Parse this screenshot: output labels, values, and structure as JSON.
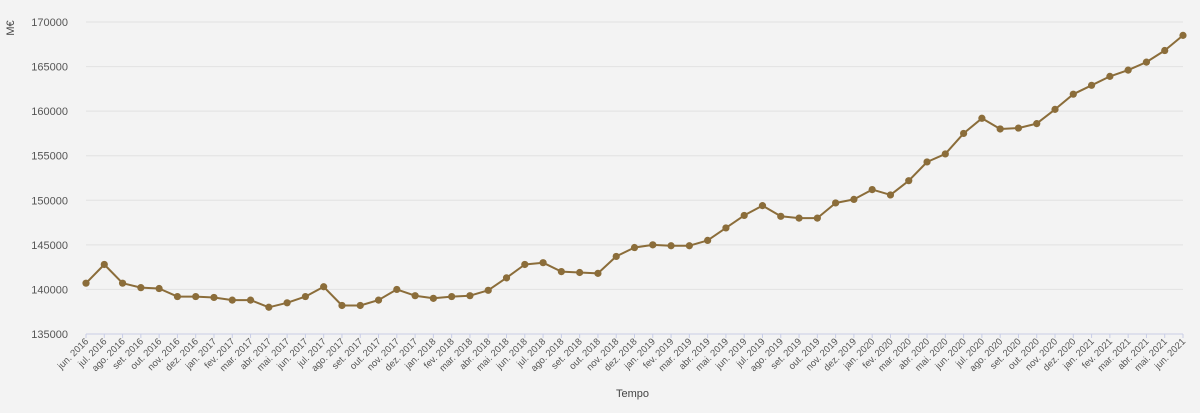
{
  "chart_data": {
    "type": "line",
    "xlabel": "Tempo",
    "ylabel": "M€",
    "ylim": [
      135000,
      170000
    ],
    "yticks": [
      135000,
      140000,
      145000,
      150000,
      155000,
      160000,
      165000,
      170000
    ],
    "grid": true,
    "line_color": "#8b6d3a",
    "categories": [
      "jun. 2016",
      "jul. 2016",
      "ago. 2016",
      "set. 2016",
      "out. 2016",
      "nov. 2016",
      "dez. 2016",
      "jan. 2017",
      "fev. 2017",
      "mar. 2017",
      "abr. 2017",
      "mai. 2017",
      "jun. 2017",
      "jul. 2017",
      "ago. 2017",
      "set. 2017",
      "out. 2017",
      "nov. 2017",
      "dez. 2017",
      "jan. 2018",
      "fev. 2018",
      "mar. 2018",
      "abr. 2018",
      "mai. 2018",
      "jun. 2018",
      "jul. 2018",
      "ago. 2018",
      "set. 2018",
      "out. 2018",
      "nov. 2018",
      "dez. 2018",
      "jan. 2019",
      "fev. 2019",
      "mar. 2019",
      "abr. 2019",
      "mai. 2019",
      "jun. 2019",
      "jul. 2019",
      "ago. 2019",
      "set. 2019",
      "out. 2019",
      "nov. 2019",
      "dez. 2019",
      "jan. 2020",
      "fev. 2020",
      "mar. 2020",
      "abr. 2020",
      "mai. 2020",
      "jun. 2020",
      "jul. 2020",
      "ago. 2020",
      "set. 2020",
      "out. 2020",
      "nov. 2020",
      "dez. 2020",
      "jan. 2021",
      "fev. 2021",
      "mar. 2021",
      "abr. 2021",
      "mai. 2021",
      "jun. 2021"
    ],
    "values": [
      140700,
      142800,
      140700,
      140200,
      140100,
      139200,
      139200,
      139100,
      138800,
      138800,
      138000,
      138500,
      139200,
      140300,
      138200,
      138200,
      138800,
      140000,
      139300,
      139000,
      139200,
      139300,
      139900,
      141300,
      142800,
      143000,
      142000,
      141900,
      141800,
      143700,
      144700,
      145000,
      144900,
      144900,
      145500,
      146900,
      148300,
      149400,
      148200,
      148000,
      148000,
      149700,
      150100,
      151200,
      150600,
      152200,
      154300,
      155200,
      157500,
      159200,
      158000,
      158100,
      158600,
      160200,
      161900,
      162900,
      163900,
      164600,
      165500,
      166800,
      168500
    ]
  }
}
